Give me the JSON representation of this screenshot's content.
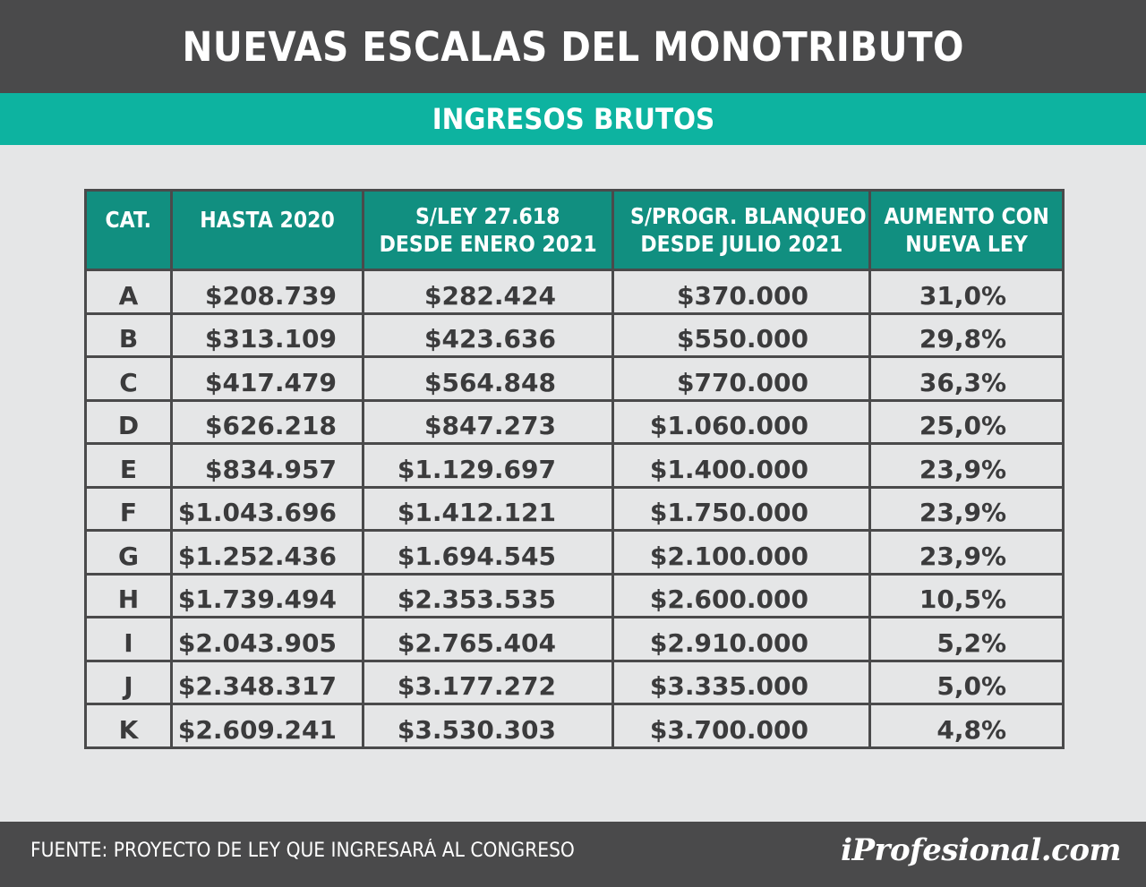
{
  "title": "NUEVAS ESCALAS DEL MONOTRIBUTO",
  "subtitle": "INGRESOS BRUTOS",
  "source": "FUENTE: PROYECTO DE LEY QUE INGRESARÁ AL CONGRESO",
  "brand": "iProfesional.com",
  "colors": {
    "header": "#4a4a4b",
    "accent": "#0db3a0",
    "table_header": "#118f80",
    "background": "#e5e6e7"
  },
  "chart_data": {
    "type": "table",
    "columns": [
      {
        "line1": "CAT.",
        "line2": ""
      },
      {
        "line1": "HASTA 2020",
        "line2": ""
      },
      {
        "line1": "S/LEY 27.618",
        "line2": "DESDE ENERO 2021"
      },
      {
        "line1": "S/PROGR. BLANQUEO",
        "line2": "DESDE JULIO 2021"
      },
      {
        "line1": "AUMENTO CON",
        "line2": "NUEVA LEY"
      }
    ],
    "rows": [
      [
        "A",
        "$208.739",
        "$282.424",
        "$370.000",
        "31,0%"
      ],
      [
        "B",
        "$313.109",
        "$423.636",
        "$550.000",
        "29,8%"
      ],
      [
        "C",
        "$417.479",
        "$564.848",
        "$770.000",
        "36,3%"
      ],
      [
        "D",
        "$626.218",
        "$847.273",
        "$1.060.000",
        "25,0%"
      ],
      [
        "E",
        "$834.957",
        "$1.129.697",
        "$1.400.000",
        "23,9%"
      ],
      [
        "F",
        "$1.043.696",
        "$1.412.121",
        "$1.750.000",
        "23,9%"
      ],
      [
        "G",
        "$1.252.436",
        "$1.694.545",
        "$2.100.000",
        "23,9%"
      ],
      [
        "H",
        "$1.739.494",
        "$2.353.535",
        "$2.600.000",
        "10,5%"
      ],
      [
        "I",
        "$2.043.905",
        "$2.765.404",
        "$2.910.000",
        "5,2%"
      ],
      [
        "J",
        "$2.348.317",
        "$3.177.272",
        "$3.335.000",
        "5,0%"
      ],
      [
        "K",
        "$2.609.241",
        "$3.530.303",
        "$3.700.000",
        "4,8%"
      ]
    ]
  }
}
